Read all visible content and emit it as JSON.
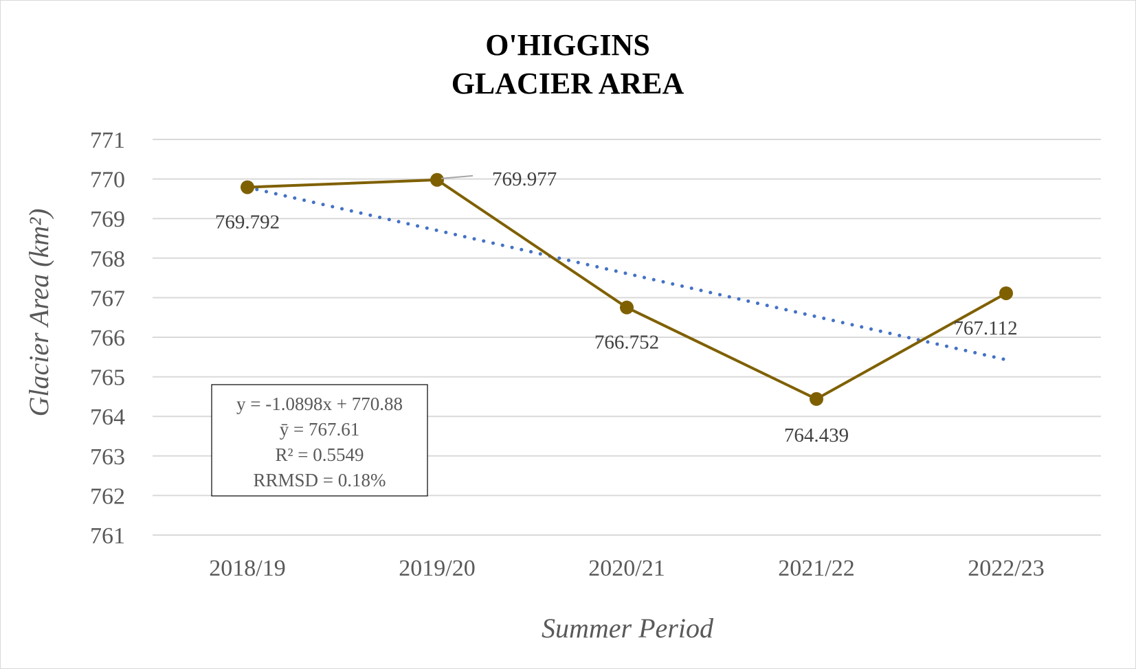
{
  "chart_data": {
    "type": "line",
    "title": [
      "O'HIGGINS",
      "GLACIER AREA"
    ],
    "xlabel": "Summer Period",
    "ylabel": "Glacier Area (km²)",
    "ylim": [
      761,
      771
    ],
    "yticks": [
      761,
      762,
      763,
      764,
      765,
      766,
      767,
      768,
      769,
      770,
      771
    ],
    "categories": [
      "2018/19",
      "2019/20",
      "2020/21",
      "2021/22",
      "2022/23"
    ],
    "series": [
      {
        "values": [
          769.792,
          769.977,
          766.752,
          764.439,
          767.112
        ],
        "data_labels": [
          "769.792",
          "769.977",
          "766.752",
          "764.439",
          "767.112"
        ],
        "color": "#7f6000"
      }
    ],
    "trendline": {
      "type": "linear",
      "slope": -1.0898,
      "intercept": 770.88,
      "color": "#4472c4",
      "style": "dotted"
    },
    "stats_box": [
      "y = -1.0898x + 770.88",
      "ȳ = 767.61",
      "R² = 0.5549",
      "RRMSD = 0.18%"
    ],
    "grid": true,
    "legend": "none"
  }
}
